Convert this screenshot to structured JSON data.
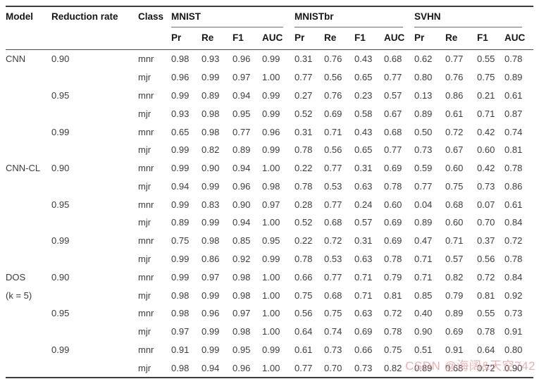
{
  "table": {
    "header": {
      "model": "Model",
      "reduction_rate": "Reduction rate",
      "class": "Class",
      "groups": [
        {
          "label": "MNIST",
          "subcols": [
            "Pr",
            "Re",
            "F1",
            "AUC"
          ]
        },
        {
          "label": "MNISTbr",
          "subcols": [
            "Pr",
            "Re",
            "F1",
            "AUC"
          ]
        },
        {
          "label": "SVHN",
          "subcols": [
            "Pr",
            "Re",
            "F1",
            "AUC"
          ]
        }
      ]
    },
    "rows": [
      {
        "model": "CNN",
        "reduction": "0.90",
        "class": "mnr",
        "mnist": [
          "0.98",
          "0.93",
          "0.96",
          "0.99"
        ],
        "mnistbr": [
          "0.31",
          "0.76",
          "0.43",
          "0.68"
        ],
        "svhn": [
          "0.62",
          "0.77",
          "0.55",
          "0.78"
        ]
      },
      {
        "model": "",
        "reduction": "",
        "class": "mjr",
        "mnist": [
          "0.96",
          "0.99",
          "0.97",
          "1.00"
        ],
        "mnistbr": [
          "0.77",
          "0.56",
          "0.65",
          "0.77"
        ],
        "svhn": [
          "0.80",
          "0.76",
          "0.75",
          "0.89"
        ]
      },
      {
        "model": "",
        "reduction": "0.95",
        "class": "mnr",
        "mnist": [
          "0.99",
          "0.89",
          "0.94",
          "0.99"
        ],
        "mnistbr": [
          "0.27",
          "0.76",
          "0.23",
          "0.57"
        ],
        "svhn": [
          "0.13",
          "0.86",
          "0.21",
          "0.61"
        ]
      },
      {
        "model": "",
        "reduction": "",
        "class": "mjr",
        "mnist": [
          "0.93",
          "0.98",
          "0.95",
          "0.99"
        ],
        "mnistbr": [
          "0.52",
          "0.69",
          "0.58",
          "0.67"
        ],
        "svhn": [
          "0.89",
          "0.61",
          "0.71",
          "0.87"
        ]
      },
      {
        "model": "",
        "reduction": "0.99",
        "class": "mnr",
        "mnist": [
          "0.65",
          "0.98",
          "0.77",
          "0.96"
        ],
        "mnistbr": [
          "0.31",
          "0.71",
          "0.43",
          "0.68"
        ],
        "svhn": [
          "0.50",
          "0.72",
          "0.42",
          "0.74"
        ]
      },
      {
        "model": "",
        "reduction": "",
        "class": "mjr",
        "mnist": [
          "0.99",
          "0.82",
          "0.89",
          "0.99"
        ],
        "mnistbr": [
          "0.78",
          "0.56",
          "0.65",
          "0.77"
        ],
        "svhn": [
          "0.73",
          "0.67",
          "0.60",
          "0.81"
        ]
      },
      {
        "model": "CNN-CL",
        "reduction": "0.90",
        "class": "mnr",
        "mnist": [
          "0.99",
          "0.90",
          "0.94",
          "1.00"
        ],
        "mnistbr": [
          "0.22",
          "0.77",
          "0.31",
          "0.69"
        ],
        "svhn": [
          "0.59",
          "0.60",
          "0.42",
          "0.78"
        ]
      },
      {
        "model": "",
        "reduction": "",
        "class": "mjr",
        "mnist": [
          "0.94",
          "0.99",
          "0.96",
          "0.98"
        ],
        "mnistbr": [
          "0.78",
          "0.53",
          "0.63",
          "0.78"
        ],
        "svhn": [
          "0.77",
          "0.75",
          "0.73",
          "0.86"
        ]
      },
      {
        "model": "",
        "reduction": "0.95",
        "class": "mnr",
        "mnist": [
          "0.99",
          "0.83",
          "0.90",
          "0.97"
        ],
        "mnistbr": [
          "0.28",
          "0.77",
          "0.24",
          "0.60"
        ],
        "svhn": [
          "0.04",
          "0.68",
          "0.07",
          "0.61"
        ]
      },
      {
        "model": "",
        "reduction": "",
        "class": "mjr",
        "mnist": [
          "0.89",
          "0.99",
          "0.94",
          "1.00"
        ],
        "mnistbr": [
          "0.52",
          "0.68",
          "0.57",
          "0.69"
        ],
        "svhn": [
          "0.89",
          "0.60",
          "0.70",
          "0.84"
        ]
      },
      {
        "model": "",
        "reduction": "0.99",
        "class": "mnr",
        "mnist": [
          "0.75",
          "0.98",
          "0.85",
          "0.95"
        ],
        "mnistbr": [
          "0.22",
          "0.72",
          "0.31",
          "0.69"
        ],
        "svhn": [
          "0.47",
          "0.71",
          "0.37",
          "0.72"
        ]
      },
      {
        "model": "",
        "reduction": "",
        "class": "mjr",
        "mnist": [
          "0.99",
          "0.86",
          "0.92",
          "0.99"
        ],
        "mnistbr": [
          "0.78",
          "0.53",
          "0.63",
          "0.78"
        ],
        "svhn": [
          "0.71",
          "0.57",
          "0.56",
          "0.78"
        ]
      },
      {
        "model": "DOS",
        "reduction": "0.90",
        "class": "mnr",
        "mnist": [
          "0.99",
          "0.97",
          "0.98",
          "1.00"
        ],
        "mnistbr": [
          "0.66",
          "0.77",
          "0.71",
          "0.79"
        ],
        "svhn": [
          "0.71",
          "0.82",
          "0.72",
          "0.84"
        ]
      },
      {
        "model": "(k = 5)",
        "reduction": "",
        "class": "mjr",
        "mnist": [
          "0.98",
          "0.99",
          "0.98",
          "1.00"
        ],
        "mnistbr": [
          "0.75",
          "0.68",
          "0.71",
          "0.81"
        ],
        "svhn": [
          "0.85",
          "0.79",
          "0.81",
          "0.92"
        ]
      },
      {
        "model": "",
        "reduction": "0.95",
        "class": "mnr",
        "mnist": [
          "0.98",
          "0.96",
          "0.97",
          "1.00"
        ],
        "mnistbr": [
          "0.56",
          "0.75",
          "0.63",
          "0.72"
        ],
        "svhn": [
          "0.40",
          "0.89",
          "0.55",
          "0.73"
        ]
      },
      {
        "model": "",
        "reduction": "",
        "class": "mjr",
        "mnist": [
          "0.97",
          "0.99",
          "0.98",
          "1.00"
        ],
        "mnistbr": [
          "0.64",
          "0.74",
          "0.69",
          "0.78"
        ],
        "svhn": [
          "0.90",
          "0.69",
          "0.78",
          "0.91"
        ]
      },
      {
        "model": "",
        "reduction": "0.99",
        "class": "mnr",
        "mnist": [
          "0.91",
          "0.99",
          "0.95",
          "0.99"
        ],
        "mnistbr": [
          "0.61",
          "0.73",
          "0.66",
          "0.75"
        ],
        "svhn": [
          "0.51",
          "0.91",
          "0.64",
          "0.80"
        ]
      },
      {
        "model": "",
        "reduction": "",
        "class": "mjr",
        "mnist": [
          "0.98",
          "0.94",
          "0.96",
          "1.00"
        ],
        "mnistbr": [
          "0.77",
          "0.70",
          "0.73",
          "0.82"
        ],
        "svhn": [
          "0.89",
          "0.68",
          "0.72",
          "0.90"
        ]
      }
    ]
  },
  "watermark": {
    "text": "CSDN @海阔&天空742",
    "color": "#e9a3a3"
  }
}
